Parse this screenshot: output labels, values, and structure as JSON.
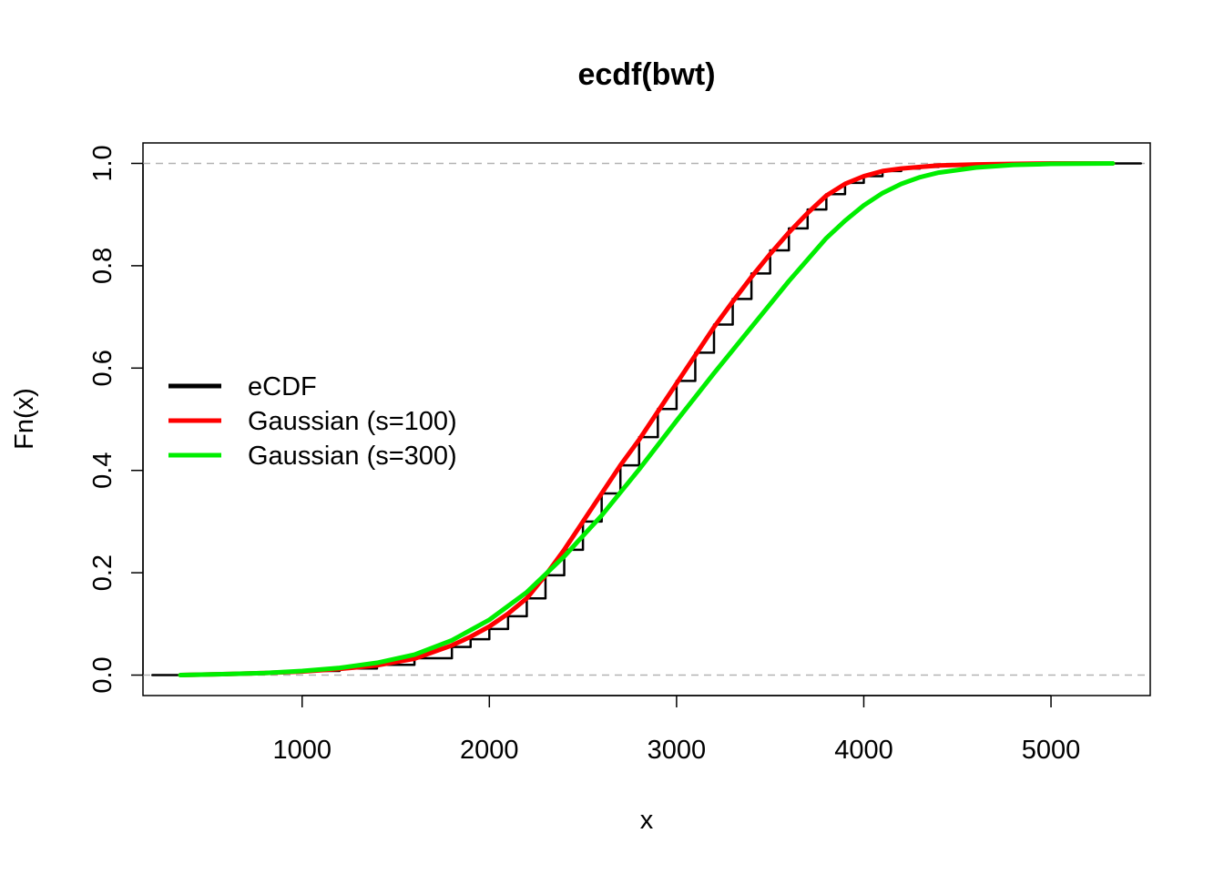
{
  "chart_data": {
    "type": "line",
    "title": "ecdf(bwt)",
    "xlabel": "x",
    "ylabel": "Fn(x)",
    "xlim": [
      150,
      5530
    ],
    "ylim": [
      -0.04,
      1.04
    ],
    "x_ticks": [
      1000,
      2000,
      3000,
      4000,
      5000
    ],
    "x_tick_labels": [
      "1000",
      "2000",
      "3000",
      "4000",
      "5000"
    ],
    "y_ticks": [
      0,
      0.2,
      0.4,
      0.6,
      0.8,
      1.0
    ],
    "y_tick_labels": [
      "0.0",
      "0.2",
      "0.4",
      "0.6",
      "0.8",
      "1.0"
    ],
    "reference_lines": [
      0,
      1
    ],
    "grid": false,
    "legend": {
      "position": "left",
      "entries": [
        {
          "label": "eCDF",
          "color": "#000000"
        },
        {
          "label": "Gaussian (s=100)",
          "color": "#ff0000"
        },
        {
          "label": "Gaussian (s=300)",
          "color": "#00ee00"
        }
      ]
    },
    "series": [
      {
        "name": "eCDF",
        "color": "#000000",
        "style": "step",
        "x": [
          200,
          350,
          600,
          800,
          1000,
          1200,
          1400,
          1600,
          1800,
          1900,
          2000,
          2100,
          2200,
          2300,
          2400,
          2500,
          2600,
          2700,
          2800,
          2900,
          3000,
          3100,
          3200,
          3300,
          3400,
          3500,
          3600,
          3700,
          3800,
          3900,
          4000,
          4100,
          4200,
          4300,
          4400,
          4600,
          4800,
          5000,
          5330,
          5480
        ],
        "y": [
          0,
          0.0,
          0.003,
          0.005,
          0.008,
          0.013,
          0.02,
          0.033,
          0.055,
          0.07,
          0.09,
          0.115,
          0.15,
          0.195,
          0.245,
          0.3,
          0.355,
          0.41,
          0.465,
          0.52,
          0.575,
          0.63,
          0.685,
          0.735,
          0.785,
          0.83,
          0.873,
          0.91,
          0.94,
          0.962,
          0.975,
          0.985,
          0.99,
          0.993,
          0.996,
          0.998,
          1.0,
          1.0,
          1.0,
          1.0
        ]
      },
      {
        "name": "Gaussian (s=100)",
        "color": "#ff0000",
        "style": "line",
        "x": [
          350,
          600,
          800,
          1000,
          1200,
          1400,
          1600,
          1800,
          1900,
          2000,
          2100,
          2200,
          2300,
          2400,
          2500,
          2600,
          2700,
          2800,
          2900,
          3000,
          3100,
          3200,
          3300,
          3400,
          3500,
          3600,
          3700,
          3800,
          3900,
          4000,
          4100,
          4200,
          4300,
          4400,
          4600,
          4800,
          5000,
          5330
        ],
        "y": [
          0.0,
          0.002,
          0.004,
          0.007,
          0.012,
          0.019,
          0.032,
          0.058,
          0.075,
          0.095,
          0.12,
          0.15,
          0.195,
          0.245,
          0.3,
          0.355,
          0.41,
          0.46,
          0.515,
          0.57,
          0.625,
          0.68,
          0.73,
          0.778,
          0.823,
          0.865,
          0.903,
          0.937,
          0.96,
          0.975,
          0.985,
          0.99,
          0.993,
          0.996,
          0.998,
          0.999,
          1.0,
          1.0
        ]
      },
      {
        "name": "Gaussian (s=300)",
        "color": "#00ee00",
        "style": "line",
        "x": [
          350,
          600,
          800,
          1000,
          1200,
          1400,
          1600,
          1800,
          2000,
          2200,
          2400,
          2600,
          2800,
          3000,
          3200,
          3400,
          3600,
          3800,
          3900,
          4000,
          4100,
          4200,
          4300,
          4400,
          4600,
          4800,
          5000,
          5330
        ],
        "y": [
          0.0,
          0.002,
          0.004,
          0.008,
          0.014,
          0.024,
          0.04,
          0.068,
          0.108,
          0.162,
          0.232,
          0.312,
          0.402,
          0.497,
          0.59,
          0.68,
          0.77,
          0.854,
          0.888,
          0.918,
          0.942,
          0.96,
          0.973,
          0.982,
          0.992,
          0.997,
          0.999,
          1.0
        ]
      }
    ]
  }
}
